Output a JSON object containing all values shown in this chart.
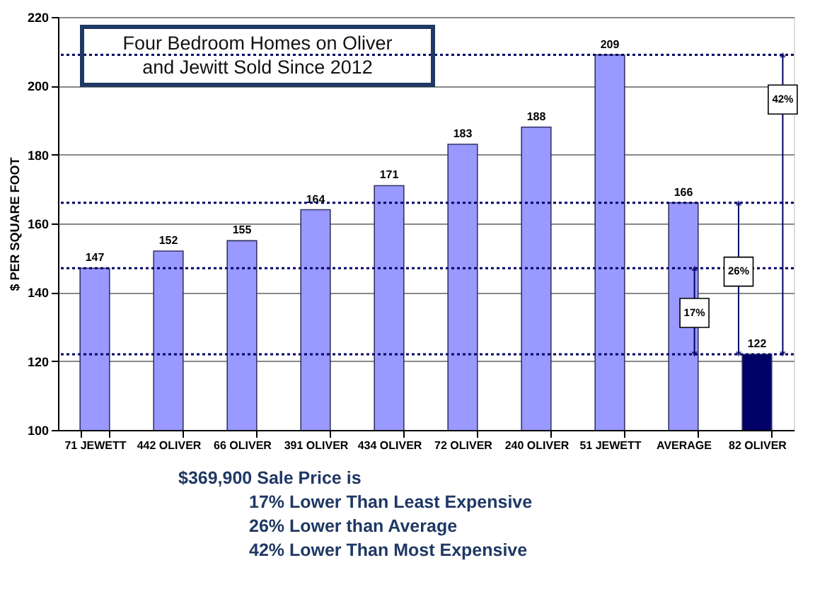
{
  "chart_data": {
    "type": "bar",
    "title": "Four Bedroom Homes on Oliver and Jewitt Sold Since 2012",
    "ylabel": "$ PER SQUARE FOOT",
    "categories": [
      "71 JEWETT",
      "442 OLIVER",
      "66 OLIVER",
      "391 OLIVER",
      "434 OLIVER",
      "72 OLIVER",
      "240 OLIVER",
      "51 JEWETT",
      "AVERAGE",
      "82 OLIVER"
    ],
    "values": [
      147,
      152,
      155,
      164,
      171,
      183,
      188,
      209,
      166,
      122
    ],
    "colors": [
      "#9999ff",
      "#9999ff",
      "#9999ff",
      "#9999ff",
      "#9999ff",
      "#9999ff",
      "#9999ff",
      "#9999ff",
      "#9999ff",
      "#000066"
    ],
    "data_labels": true,
    "ylim": [
      100,
      220
    ],
    "yticks": [
      100,
      120,
      140,
      160,
      180,
      200,
      220
    ],
    "grid": "y",
    "ref_lines": [
      {
        "axis": "y",
        "value": 147,
        "line_style": "dotted",
        "color": "#000066"
      },
      {
        "axis": "y",
        "value": 166,
        "line_style": "dotted",
        "color": "#000066"
      },
      {
        "axis": "y",
        "value": 209,
        "line_style": "dotted",
        "color": "#000066"
      },
      {
        "axis": "y",
        "value": 122,
        "line_style": "dotted",
        "color": "#000066"
      }
    ],
    "annotations": [
      {
        "text": "17%",
        "y": 134
      },
      {
        "text": "26%",
        "y": 146
      },
      {
        "text": "42%",
        "y": 196
      },
      "$369,900 Sale Price is",
      "17% Lower Than Least Expensive",
      "26% Lower than Average",
      "42% Lower Than Most Expensive"
    ]
  }
}
